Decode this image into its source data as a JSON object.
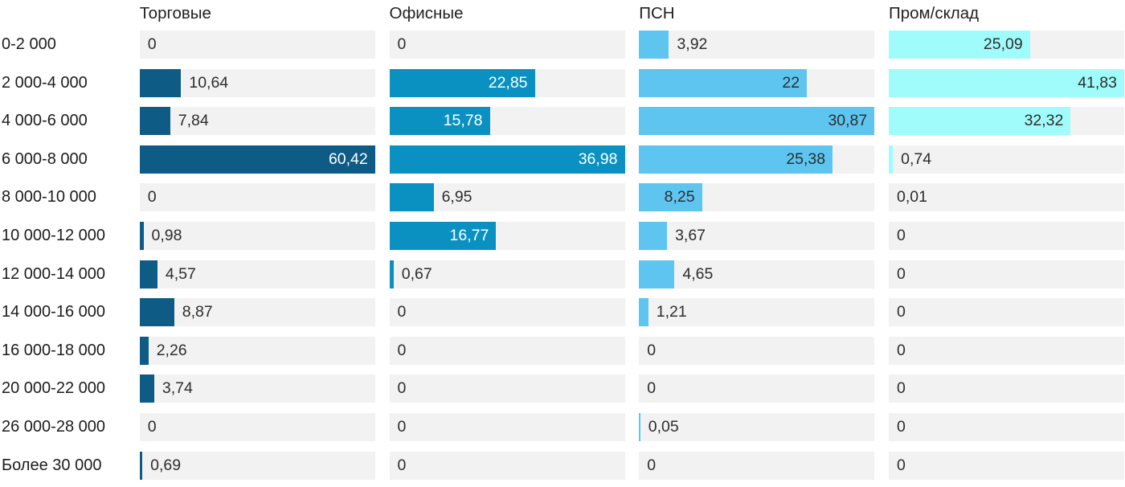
{
  "chart_data": {
    "type": "bar",
    "orientation": "horizontal",
    "title": "",
    "xlabel": "",
    "ylabel": "",
    "grid": false,
    "legend_position": "column-headers-top",
    "scaling": "bar width is percentage of each column's own maximum value",
    "value_decimal_separator": ",",
    "categories": [
      "0-2 000",
      "2 000-4 000",
      "4 000-6 000",
      "6 000-8 000",
      "8 000-10 000",
      "10 000-12 000",
      "12 000-14 000",
      "14 000-16 000",
      "16 000-18 000",
      "20 000-22 000",
      "26 000-28 000",
      "Более 30 000"
    ],
    "series": [
      {
        "name": "Торговые",
        "color": "#0e5c85",
        "inside_label_color": "#ffffff",
        "max": 60.42,
        "values": [
          0,
          10.64,
          7.84,
          60.42,
          0,
          0.98,
          4.57,
          8.87,
          2.26,
          3.74,
          0,
          0.69
        ]
      },
      {
        "name": "Офисные",
        "color": "#0a91c1",
        "inside_label_color": "#ffffff",
        "max": 36.98,
        "values": [
          0,
          22.85,
          15.78,
          36.98,
          6.95,
          16.77,
          0.67,
          0,
          0,
          0,
          0,
          0
        ]
      },
      {
        "name": "ПСН",
        "color": "#5dc5f0",
        "inside_label_color": "#2e2e2e",
        "max": 30.87,
        "values": [
          3.92,
          22,
          30.87,
          25.38,
          8.25,
          3.67,
          4.65,
          1.21,
          0,
          0,
          0.05,
          0
        ]
      },
      {
        "name": "Пром/склад",
        "color": "#9ffcfa",
        "inside_label_color": "#2e2e2e",
        "max": 41.83,
        "values": [
          25.09,
          41.83,
          32.32,
          0.74,
          0.01,
          0,
          0,
          0,
          0,
          0,
          0,
          0
        ]
      }
    ],
    "colors": {
      "track": "#f2f2f3",
      "row_label_text": "#1c1c1c",
      "outside_value_text": "#2d2d2d",
      "header_text": "#212121",
      "background": "#ffffff"
    }
  }
}
